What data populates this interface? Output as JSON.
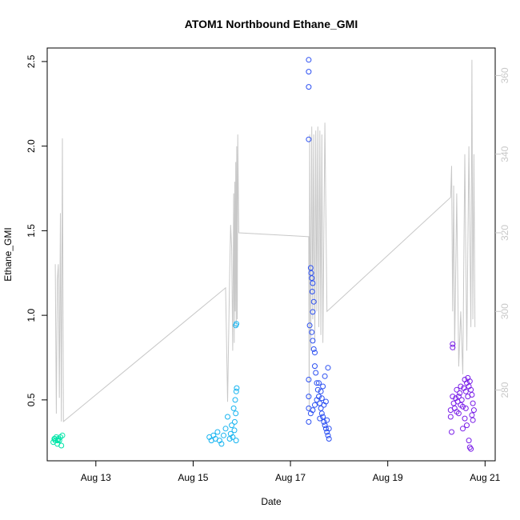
{
  "chart_data": {
    "type": "scatter",
    "title": "ATOM1 Northbound Ethane_GMI",
    "xlabel": "Date",
    "ylabel": "Ethane_GMI",
    "y2label": "",
    "xlim": [
      "2016-08-12T00:00",
      "2016-08-21T05:00"
    ],
    "ylim": [
      0.14,
      2.58
    ],
    "y2lim": [
      262,
      367
    ],
    "x_ticks": [
      {
        "value": "2016-08-13",
        "label": "Aug 13"
      },
      {
        "value": "2016-08-15",
        "label": "Aug 15"
      },
      {
        "value": "2016-08-17",
        "label": "Aug 17"
      },
      {
        "value": "2016-08-19",
        "label": "Aug 19"
      },
      {
        "value": "2016-08-21",
        "label": "Aug 21"
      }
    ],
    "y_ticks": [
      "0.5",
      "1.0",
      "1.5",
      "2.0",
      "2.5"
    ],
    "y2_ticks": [
      "280",
      "300",
      "320",
      "340",
      "360"
    ],
    "grid": false,
    "legend": "none",
    "colors": {
      "line": "#c8c8c8",
      "right_axis": "#c8c8c8",
      "axis": "#000000"
    },
    "series": [
      {
        "color": "#00e5a8",
        "points": [
          [
            "2016-08-12T03:00",
            0.25
          ],
          [
            "2016-08-12T03:30",
            0.27
          ],
          [
            "2016-08-12T04:00",
            0.26
          ],
          [
            "2016-08-12T04:30",
            0.28
          ],
          [
            "2016-08-12T05:00",
            0.24
          ],
          [
            "2016-08-12T05:30",
            0.27
          ],
          [
            "2016-08-12T06:00",
            0.26
          ],
          [
            "2016-08-12T06:30",
            0.28
          ],
          [
            "2016-08-12T07:00",
            0.23
          ],
          [
            "2016-08-12T07:30",
            0.29
          ],
          [
            "2016-08-12T03:45",
            0.27
          ],
          [
            "2016-08-12T05:15",
            0.26
          ]
        ]
      },
      {
        "color": "#16b4f0",
        "points": [
          [
            "2016-08-15T08:00",
            0.28
          ],
          [
            "2016-08-15T09:00",
            0.26
          ],
          [
            "2016-08-15T10:00",
            0.29
          ],
          [
            "2016-08-15T11:00",
            0.27
          ],
          [
            "2016-08-15T12:00",
            0.31
          ],
          [
            "2016-08-15T13:00",
            0.26
          ],
          [
            "2016-08-15T14:00",
            0.24
          ],
          [
            "2016-08-15T15:00",
            0.29
          ],
          [
            "2016-08-15T16:00",
            0.33
          ],
          [
            "2016-08-15T17:00",
            0.4
          ],
          [
            "2016-08-15T18:00",
            0.27
          ],
          [
            "2016-08-15T18:30",
            0.3
          ],
          [
            "2016-08-15T19:00",
            0.35
          ],
          [
            "2016-08-15T19:30",
            0.28
          ],
          [
            "2016-08-15T20:00",
            0.45
          ],
          [
            "2016-08-15T20:30",
            0.37
          ],
          [
            "2016-08-15T20:45",
            0.5
          ],
          [
            "2016-08-15T21:00",
            0.42
          ],
          [
            "2016-08-15T21:15",
            0.55
          ],
          [
            "2016-08-15T21:30",
            0.57
          ],
          [
            "2016-08-15T21:00",
            0.94
          ],
          [
            "2016-08-15T21:20",
            0.95
          ],
          [
            "2016-08-15T21:10",
            0.26
          ],
          [
            "2016-08-15T20:20",
            0.32
          ]
        ]
      },
      {
        "color": "#2c50f2",
        "points": [
          [
            "2016-08-17T09:00",
            2.51
          ],
          [
            "2016-08-17T09:00",
            2.44
          ],
          [
            "2016-08-17T09:00",
            2.35
          ],
          [
            "2016-08-17T09:00",
            2.04
          ],
          [
            "2016-08-17T09:00",
            0.62
          ],
          [
            "2016-08-17T09:00",
            0.52
          ],
          [
            "2016-08-17T09:00",
            0.45
          ],
          [
            "2016-08-17T09:00",
            0.37
          ],
          [
            "2016-08-17T09:30",
            0.94
          ],
          [
            "2016-08-17T10:00",
            1.28
          ],
          [
            "2016-08-17T10:15",
            1.25
          ],
          [
            "2016-08-17T10:30",
            1.22
          ],
          [
            "2016-08-17T11:00",
            1.19
          ],
          [
            "2016-08-17T10:45",
            1.14
          ],
          [
            "2016-08-17T11:30",
            1.08
          ],
          [
            "2016-08-17T11:00",
            1.02
          ],
          [
            "2016-08-17T10:30",
            0.9
          ],
          [
            "2016-08-17T11:00",
            0.85
          ],
          [
            "2016-08-17T11:30",
            0.8
          ],
          [
            "2016-08-17T12:00",
            0.78
          ],
          [
            "2016-08-17T12:00",
            0.7
          ],
          [
            "2016-08-17T12:30",
            0.66
          ],
          [
            "2016-08-17T13:00",
            0.6
          ],
          [
            "2016-08-17T13:30",
            0.56
          ],
          [
            "2016-08-17T14:00",
            0.52
          ],
          [
            "2016-08-17T14:30",
            0.48
          ],
          [
            "2016-08-17T15:00",
            0.45
          ],
          [
            "2016-08-17T15:30",
            0.42
          ],
          [
            "2016-08-17T16:00",
            0.4
          ],
          [
            "2016-08-17T16:30",
            0.37
          ],
          [
            "2016-08-17T17:00",
            0.35
          ],
          [
            "2016-08-17T17:30",
            0.33
          ],
          [
            "2016-08-17T18:00",
            0.31
          ],
          [
            "2016-08-17T18:30",
            0.29
          ],
          [
            "2016-08-17T19:00",
            0.27
          ],
          [
            "2016-08-17T18:30",
            0.69
          ],
          [
            "2016-08-17T17:00",
            0.64
          ],
          [
            "2016-08-17T16:00",
            0.58
          ],
          [
            "2016-08-17T15:00",
            0.55
          ],
          [
            "2016-08-17T14:00",
            0.6
          ],
          [
            "2016-08-17T13:00",
            0.5
          ],
          [
            "2016-08-17T12:00",
            0.47
          ],
          [
            "2016-08-17T11:00",
            0.44
          ],
          [
            "2016-08-17T10:00",
            0.42
          ],
          [
            "2016-08-17T17:30",
            0.49
          ],
          [
            "2016-08-17T18:00",
            0.38
          ],
          [
            "2016-08-17T19:00",
            0.33
          ],
          [
            "2016-08-17T16:30",
            0.47
          ],
          [
            "2016-08-17T15:30",
            0.51
          ],
          [
            "2016-08-17T14:30",
            0.39
          ]
        ]
      },
      {
        "color": "#7a1ee8",
        "points": [
          [
            "2016-08-20T08:00",
            0.83
          ],
          [
            "2016-08-20T08:00",
            0.81
          ],
          [
            "2016-08-20T07:00",
            0.44
          ],
          [
            "2016-08-20T07:00",
            0.4
          ],
          [
            "2016-08-20T07:30",
            0.31
          ],
          [
            "2016-08-20T08:00",
            0.52
          ],
          [
            "2016-08-20T08:30",
            0.48
          ],
          [
            "2016-08-20T09:00",
            0.45
          ],
          [
            "2016-08-20T09:30",
            0.51
          ],
          [
            "2016-08-20T10:00",
            0.56
          ],
          [
            "2016-08-20T10:30",
            0.49
          ],
          [
            "2016-08-20T11:00",
            0.42
          ],
          [
            "2016-08-20T11:30",
            0.54
          ],
          [
            "2016-08-20T12:00",
            0.58
          ],
          [
            "2016-08-20T12:30",
            0.5
          ],
          [
            "2016-08-20T13:00",
            0.46
          ],
          [
            "2016-08-20T13:30",
            0.57
          ],
          [
            "2016-08-20T14:00",
            0.62
          ],
          [
            "2016-08-20T14:30",
            0.55
          ],
          [
            "2016-08-20T15:00",
            0.6
          ],
          [
            "2016-08-20T15:30",
            0.63
          ],
          [
            "2016-08-20T16:00",
            0.58
          ],
          [
            "2016-08-20T16:30",
            0.61
          ],
          [
            "2016-08-20T17:00",
            0.56
          ],
          [
            "2016-08-20T17:30",
            0.53
          ],
          [
            "2016-08-20T18:00",
            0.48
          ],
          [
            "2016-08-20T18:30",
            0.44
          ],
          [
            "2016-08-20T16:00",
            0.26
          ],
          [
            "2016-08-20T16:30",
            0.22
          ],
          [
            "2016-08-20T17:00",
            0.21
          ],
          [
            "2016-08-20T15:00",
            0.35
          ],
          [
            "2016-08-20T14:00",
            0.39
          ],
          [
            "2016-08-20T13:00",
            0.33
          ],
          [
            "2016-08-20T12:00",
            0.47
          ],
          [
            "2016-08-20T11:00",
            0.52
          ],
          [
            "2016-08-20T10:00",
            0.43
          ],
          [
            "2016-08-20T17:30",
            0.41
          ],
          [
            "2016-08-20T18:00",
            0.38
          ],
          [
            "2016-08-20T15:30",
            0.52
          ],
          [
            "2016-08-20T14:30",
            0.45
          ]
        ]
      }
    ],
    "secondary_line": {
      "color": "#c8c8c8",
      "points": [
        [
          "2016-08-12T04:00",
          312
        ],
        [
          "2016-08-12T04:30",
          274
        ],
        [
          "2016-08-12T05:00",
          308
        ],
        [
          "2016-08-12T05:30",
          312
        ],
        [
          "2016-08-12T06:00",
          278
        ],
        [
          "2016-08-12T06:30",
          325
        ],
        [
          "2016-08-12T07:00",
          272
        ],
        [
          "2016-08-12T07:30",
          344
        ],
        [
          "2016-08-12T08:00",
          272
        ],
        [
          "2016-08-15T16:00",
          306
        ],
        [
          "2016-08-15T17:00",
          277
        ],
        [
          "2016-08-15T18:00",
          310
        ],
        [
          "2016-08-15T18:30",
          322
        ],
        [
          "2016-08-15T19:00",
          316
        ],
        [
          "2016-08-15T19:30",
          290
        ],
        [
          "2016-08-15T20:00",
          330
        ],
        [
          "2016-08-15T20:15",
          292
        ],
        [
          "2016-08-15T20:30",
          333
        ],
        [
          "2016-08-15T20:45",
          300
        ],
        [
          "2016-08-15T21:00",
          338
        ],
        [
          "2016-08-15T21:15",
          296
        ],
        [
          "2016-08-15T21:30",
          342
        ],
        [
          "2016-08-15T21:45",
          298
        ],
        [
          "2016-08-15T22:00",
          345
        ],
        [
          "2016-08-15T22:30",
          320
        ],
        [
          "2016-08-17T09:00",
          319
        ],
        [
          "2016-08-17T09:15",
          275
        ],
        [
          "2016-08-17T09:30",
          345
        ],
        [
          "2016-08-17T10:00",
          290
        ],
        [
          "2016-08-17T10:30",
          347
        ],
        [
          "2016-08-17T11:00",
          298
        ],
        [
          "2016-08-17T11:30",
          345
        ],
        [
          "2016-08-17T12:00",
          292
        ],
        [
          "2016-08-17T12:30",
          346
        ],
        [
          "2016-08-17T13:00",
          300
        ],
        [
          "2016-08-17T13:30",
          347
        ],
        [
          "2016-08-17T14:00",
          296
        ],
        [
          "2016-08-17T14:30",
          346
        ],
        [
          "2016-08-17T15:00",
          294
        ],
        [
          "2016-08-17T15:30",
          345
        ],
        [
          "2016-08-17T16:00",
          292
        ],
        [
          "2016-08-17T17:00",
          348
        ],
        [
          "2016-08-17T18:00",
          300
        ],
        [
          "2016-08-20T07:00",
          329
        ],
        [
          "2016-08-20T07:30",
          337
        ],
        [
          "2016-08-20T08:00",
          300
        ],
        [
          "2016-08-20T08:30",
          332
        ],
        [
          "2016-08-20T09:00",
          290
        ],
        [
          "2016-08-20T10:00",
          330
        ],
        [
          "2016-08-20T11:00",
          286
        ],
        [
          "2016-08-20T12:00",
          300
        ],
        [
          "2016-08-20T13:00",
          284
        ],
        [
          "2016-08-20T14:00",
          340
        ],
        [
          "2016-08-20T15:00",
          290
        ],
        [
          "2016-08-20T16:00",
          342
        ],
        [
          "2016-08-20T17:00",
          296
        ],
        [
          "2016-08-20T17:30",
          364
        ],
        [
          "2016-08-20T18:00",
          298
        ],
        [
          "2016-08-20T18:30",
          340
        ],
        [
          "2016-08-20T19:00",
          296
        ]
      ]
    }
  }
}
